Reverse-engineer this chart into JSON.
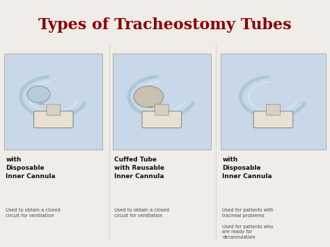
{
  "title": "Types of Tracheostomy Tubes",
  "title_color": "#8B0000",
  "background_color": "#f0ece8",
  "image_bg_color": "#c8d8e8",
  "columns": [
    {
      "heading": "with\nDisposable\nInner Cannula",
      "description": "Used to obtain a closed\ncircuit for ventilation"
    },
    {
      "heading": "Cuffed Tube\nwith Reusable\nInner Cannula",
      "description": "Used to obtain a closed\ncircuit for ventilation"
    },
    {
      "heading": "with\nDisposable\nInner Cannula",
      "description": "Used for patients with\ntracheal problems\n\nUsed for patients who\nare ready for\ndecannulation"
    }
  ]
}
